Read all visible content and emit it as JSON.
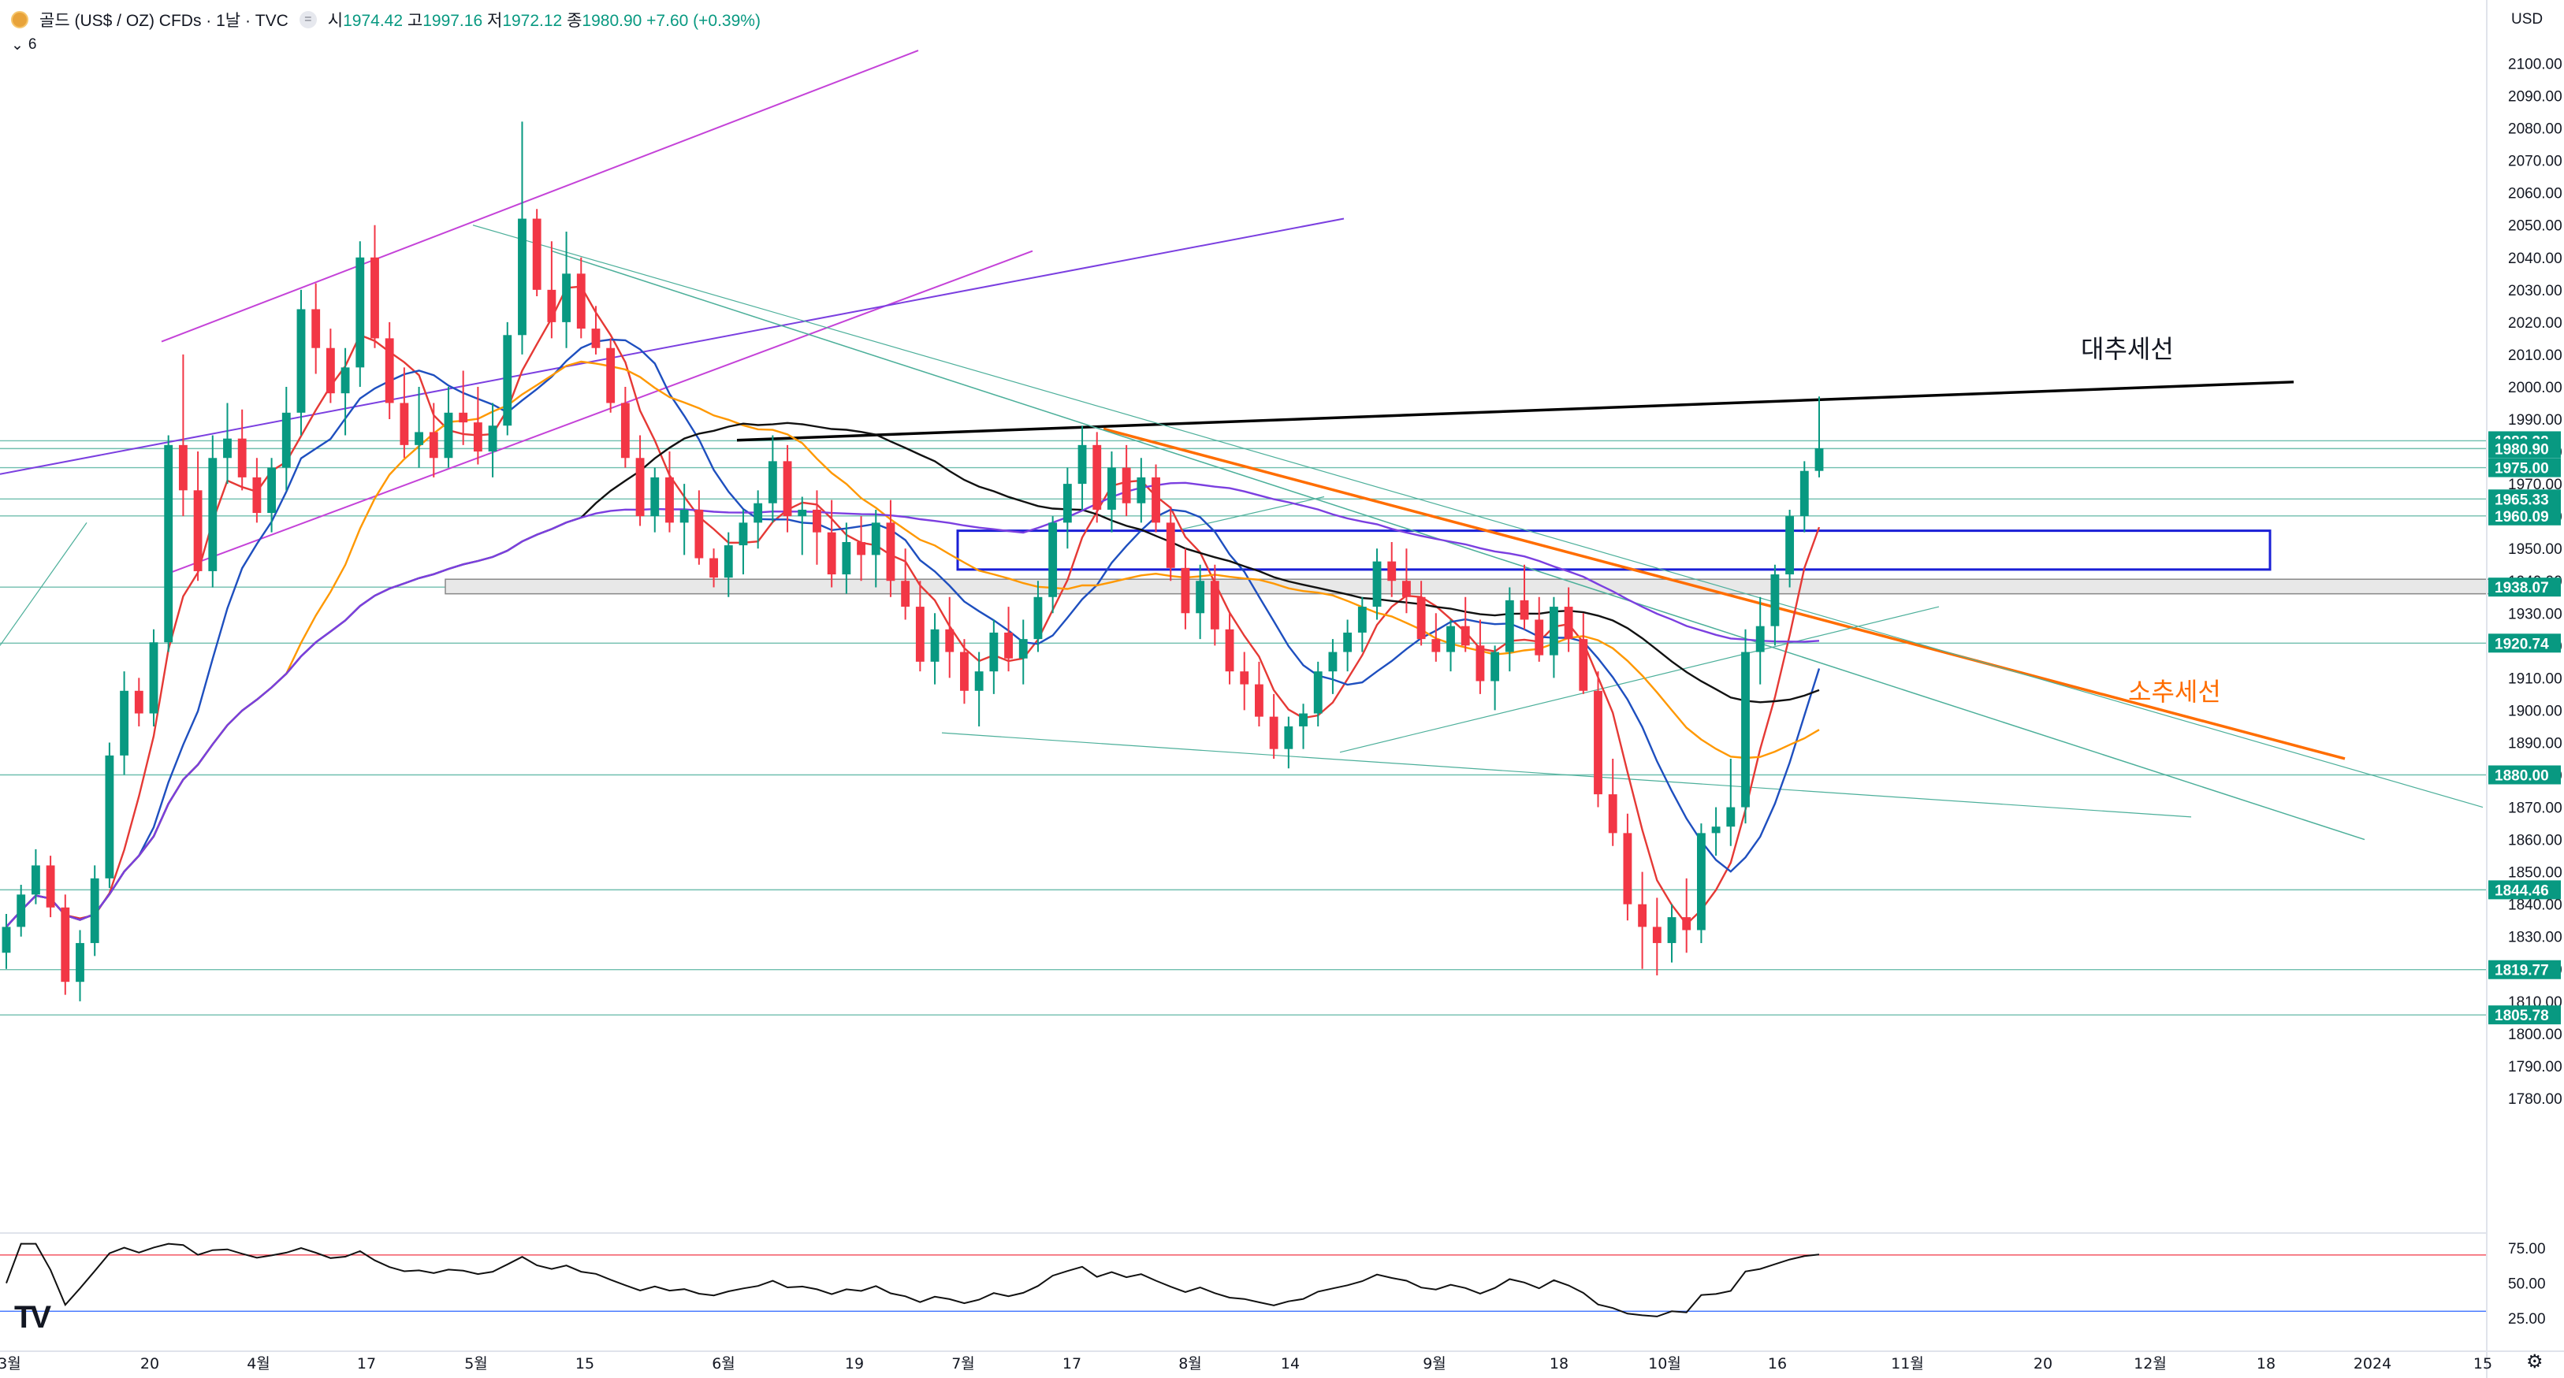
{
  "header": {
    "symbol": "골드 (US$ / OZ) CFDs · 1날 · TVC",
    "open_label": "시",
    "open": "1974.42",
    "high_label": "고",
    "high": "1997.16",
    "low_label": "저",
    "low": "1972.12",
    "close_label": "종",
    "close": "1980.90",
    "change": "+7.60 (+0.39%)",
    "indicator_count": "6",
    "currency": "USD"
  },
  "colors": {
    "up": "#089981",
    "down": "#f23645",
    "ma1": "#e53935",
    "ma2": "#1e4fbf",
    "ma3": "#ff9800",
    "ma4": "#111111",
    "ma5": "#7b3fe0",
    "resistance": "#000000",
    "support_trend": "#ff6d00",
    "box": "#1a1fd6"
  },
  "annotations": {
    "major_trend": "대추세선",
    "minor_trend": "소추세선"
  },
  "chart_data": {
    "type": "candlestick",
    "ylim": [
      1770,
      2105
    ],
    "y_ticks": [
      1780,
      1790,
      1800,
      1810,
      1820,
      1830,
      1840,
      1850,
      1860,
      1870,
      1880,
      1890,
      1900,
      1910,
      1920,
      1930,
      1940,
      1950,
      1960,
      1970,
      1980,
      1990,
      2000,
      2010,
      2020,
      2030,
      2040,
      2050,
      2060,
      2070,
      2080,
      2090,
      2100
    ],
    "x_labels": [
      "3월",
      "20",
      "4월",
      "17",
      "5월",
      "15",
      "6월",
      "19",
      "7월",
      "17",
      "8월",
      "14",
      "9월",
      "18",
      "10월",
      "16",
      "11월",
      "20",
      "12월",
      "18",
      "2024",
      "15"
    ],
    "price_levels": [
      1983.32,
      1980.9,
      1975.0,
      1965.33,
      1960.09,
      1938.07,
      1920.74,
      1880.0,
      1844.46,
      1819.77,
      1805.78
    ],
    "last_price": 1980.9,
    "candle_start": 1825,
    "candles": [
      [
        1825,
        1837,
        1820,
        1833
      ],
      [
        1833,
        1846,
        1830,
        1843
      ],
      [
        1843,
        1857,
        1840,
        1852
      ],
      [
        1852,
        1855,
        1836,
        1839
      ],
      [
        1839,
        1843,
        1812,
        1816
      ],
      [
        1816,
        1832,
        1810,
        1828
      ],
      [
        1828,
        1852,
        1824,
        1848
      ],
      [
        1848,
        1890,
        1845,
        1886
      ],
      [
        1886,
        1912,
        1880,
        1906
      ],
      [
        1906,
        1910,
        1895,
        1899
      ],
      [
        1899,
        1925,
        1895,
        1921
      ],
      [
        1921,
        1985,
        1918,
        1982
      ],
      [
        1982,
        2010,
        1960,
        1968
      ],
      [
        1968,
        1980,
        1940,
        1943
      ],
      [
        1943,
        1985,
        1938,
        1978
      ],
      [
        1978,
        1995,
        1970,
        1984
      ],
      [
        1984,
        1993,
        1968,
        1972
      ],
      [
        1972,
        1978,
        1958,
        1961
      ],
      [
        1961,
        1978,
        1955,
        1975
      ],
      [
        1975,
        2000,
        1968,
        1992
      ],
      [
        1992,
        2030,
        1985,
        2024
      ],
      [
        2024,
        2032,
        2004,
        2012
      ],
      [
        2012,
        2018,
        1995,
        1998
      ],
      [
        1998,
        2012,
        1985,
        2006
      ],
      [
        2006,
        2045,
        2000,
        2040
      ],
      [
        2040,
        2050,
        2012,
        2015
      ],
      [
        2015,
        2020,
        1990,
        1995
      ],
      [
        1995,
        2006,
        1978,
        1982
      ],
      [
        1982,
        2000,
        1975,
        1986
      ],
      [
        1986,
        1995,
        1972,
        1978
      ],
      [
        1978,
        2000,
        1975,
        1992
      ],
      [
        1992,
        2005,
        1982,
        1989
      ],
      [
        1989,
        2000,
        1976,
        1980
      ],
      [
        1980,
        1995,
        1972,
        1988
      ],
      [
        1988,
        2020,
        1985,
        2016
      ],
      [
        2016,
        2082,
        2010,
        2052
      ],
      [
        2052,
        2055,
        2028,
        2030
      ],
      [
        2030,
        2045,
        2015,
        2020
      ],
      [
        2020,
        2048,
        2012,
        2035
      ],
      [
        2035,
        2040,
        2015,
        2018
      ],
      [
        2018,
        2025,
        2010,
        2012
      ],
      [
        2012,
        2015,
        1992,
        1995
      ],
      [
        1995,
        2000,
        1975,
        1978
      ],
      [
        1978,
        1985,
        1957,
        1960
      ],
      [
        1960,
        1975,
        1955,
        1972
      ],
      [
        1972,
        1980,
        1955,
        1958
      ],
      [
        1958,
        1970,
        1948,
        1962
      ],
      [
        1962,
        1968,
        1945,
        1947
      ],
      [
        1947,
        1950,
        1938,
        1941
      ],
      [
        1941,
        1955,
        1935,
        1951
      ],
      [
        1951,
        1962,
        1942,
        1958
      ],
      [
        1958,
        1968,
        1950,
        1964
      ],
      [
        1964,
        1985,
        1958,
        1977
      ],
      [
        1977,
        1982,
        1955,
        1960
      ],
      [
        1960,
        1966,
        1948,
        1962
      ],
      [
        1962,
        1968,
        1945,
        1955
      ],
      [
        1955,
        1965,
        1938,
        1942
      ],
      [
        1942,
        1958,
        1936,
        1952
      ],
      [
        1952,
        1960,
        1940,
        1948
      ],
      [
        1948,
        1962,
        1938,
        1958
      ],
      [
        1958,
        1965,
        1935,
        1940
      ],
      [
        1940,
        1950,
        1928,
        1932
      ],
      [
        1932,
        1940,
        1912,
        1915
      ],
      [
        1915,
        1930,
        1908,
        1925
      ],
      [
        1925,
        1935,
        1910,
        1918
      ],
      [
        1918,
        1922,
        1902,
        1906
      ],
      [
        1906,
        1918,
        1895,
        1912
      ],
      [
        1912,
        1928,
        1905,
        1924
      ],
      [
        1924,
        1932,
        1912,
        1916
      ],
      [
        1916,
        1928,
        1908,
        1922
      ],
      [
        1922,
        1940,
        1918,
        1935
      ],
      [
        1935,
        1960,
        1930,
        1958
      ],
      [
        1958,
        1975,
        1950,
        1970
      ],
      [
        1970,
        1988,
        1962,
        1982
      ],
      [
        1982,
        1986,
        1958,
        1962
      ],
      [
        1962,
        1980,
        1955,
        1975
      ],
      [
        1975,
        1982,
        1960,
        1964
      ],
      [
        1964,
        1978,
        1958,
        1972
      ],
      [
        1972,
        1976,
        1955,
        1958
      ],
      [
        1958,
        1963,
        1940,
        1944
      ],
      [
        1944,
        1950,
        1925,
        1930
      ],
      [
        1930,
        1945,
        1922,
        1940
      ],
      [
        1940,
        1945,
        1920,
        1925
      ],
      [
        1925,
        1930,
        1908,
        1912
      ],
      [
        1912,
        1918,
        1900,
        1908
      ],
      [
        1908,
        1915,
        1895,
        1898
      ],
      [
        1898,
        1905,
        1885,
        1888
      ],
      [
        1888,
        1898,
        1882,
        1895
      ],
      [
        1895,
        1902,
        1888,
        1899
      ],
      [
        1899,
        1915,
        1895,
        1912
      ],
      [
        1912,
        1922,
        1905,
        1918
      ],
      [
        1918,
        1928,
        1912,
        1924
      ],
      [
        1924,
        1935,
        1918,
        1932
      ],
      [
        1932,
        1950,
        1928,
        1946
      ],
      [
        1946,
        1952,
        1935,
        1940
      ],
      [
        1940,
        1950,
        1930,
        1935
      ],
      [
        1935,
        1940,
        1920,
        1922
      ],
      [
        1922,
        1930,
        1915,
        1918
      ],
      [
        1918,
        1928,
        1912,
        1926
      ],
      [
        1926,
        1935,
        1918,
        1920
      ],
      [
        1920,
        1928,
        1905,
        1909
      ],
      [
        1909,
        1920,
        1900,
        1918
      ],
      [
        1918,
        1938,
        1912,
        1934
      ],
      [
        1934,
        1945,
        1925,
        1928
      ],
      [
        1928,
        1935,
        1915,
        1917
      ],
      [
        1917,
        1935,
        1910,
        1932
      ],
      [
        1932,
        1938,
        1918,
        1922
      ],
      [
        1922,
        1930,
        1905,
        1906
      ],
      [
        1906,
        1912,
        1870,
        1874
      ],
      [
        1874,
        1885,
        1858,
        1862
      ],
      [
        1862,
        1868,
        1835,
        1840
      ],
      [
        1840,
        1850,
        1820,
        1833
      ],
      [
        1833,
        1842,
        1818,
        1828
      ],
      [
        1828,
        1840,
        1822,
        1836
      ],
      [
        1836,
        1848,
        1825,
        1832
      ],
      [
        1832,
        1865,
        1828,
        1862
      ],
      [
        1862,
        1870,
        1855,
        1864
      ],
      [
        1864,
        1885,
        1858,
        1870
      ],
      [
        1870,
        1925,
        1865,
        1918
      ],
      [
        1918,
        1935,
        1908,
        1926
      ],
      [
        1926,
        1945,
        1920,
        1942
      ],
      [
        1942,
        1962,
        1938,
        1960
      ],
      [
        1960,
        1977,
        1955,
        1974
      ],
      [
        1974,
        1997,
        1972,
        1981
      ]
    ],
    "rsi": {
      "levels": [
        75,
        50,
        25
      ],
      "upper": 70,
      "lower": 30
    },
    "trendlines": [
      {
        "name": "대추세선",
        "color": "#000000",
        "from": [
          "2023-06-01",
          1983
        ],
        "to": [
          "2023-12-26",
          2002
        ]
      },
      {
        "name": "소추세선",
        "color": "#ff6d00",
        "from": [
          "2023-07-20",
          1987
        ],
        "to": [
          "2023-12-26",
          1888
        ]
      }
    ]
  }
}
